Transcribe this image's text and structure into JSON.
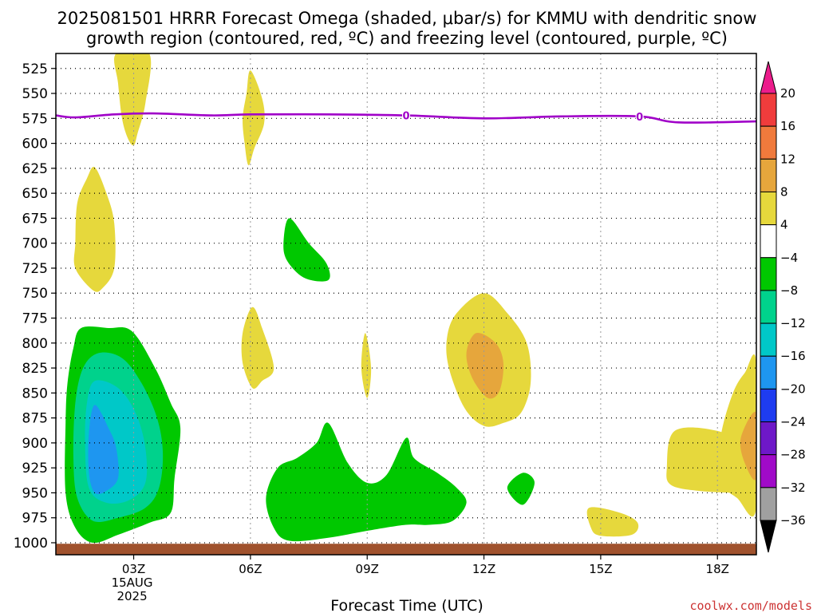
{
  "title": {
    "line1": "2025081501 HRRR Forecast Omega (shaded, μbar/s) for KMMU with dendritic snow",
    "line2": "growth region (contoured, red, ºC) and freezing level (contoured, purple, ºC)"
  },
  "credit": "coolwx.com/models",
  "chart_data": {
    "type": "heatmap",
    "title": "2025081501 HRRR Forecast Omega (shaded, μbar/s) for KMMU with dendritic snow growth region (contoured, red, ºC) and freezing level (contoured, purple, ºC)",
    "xlabel": "Forecast Time (UTC)",
    "ylabel": "",
    "x_range_hours_utc": [
      1,
      19
    ],
    "y_range_hpa": [
      510,
      1012
    ],
    "y_axis_inverted": true,
    "grid": true,
    "x_ticks": [
      {
        "hour": 3,
        "label": "03Z",
        "sub1": "15AUG",
        "sub2": "2025"
      },
      {
        "hour": 6,
        "label": "06Z"
      },
      {
        "hour": 9,
        "label": "09Z"
      },
      {
        "hour": 12,
        "label": "12Z"
      },
      {
        "hour": 15,
        "label": "15Z"
      },
      {
        "hour": 18,
        "label": "18Z"
      }
    ],
    "y_ticks": [
      525,
      550,
      575,
      600,
      625,
      650,
      675,
      700,
      725,
      750,
      775,
      800,
      825,
      850,
      875,
      900,
      925,
      950,
      975,
      1000
    ],
    "colorbar": {
      "levels": [
        "20",
        "16",
        "12",
        "8",
        "4",
        "−4",
        "−8",
        "−12",
        "−16",
        "−20",
        "−24",
        "−28",
        "−32",
        "−36"
      ],
      "bins": [
        {
          "color": "#ec1c8c",
          "shape": "triangle-top"
        },
        {
          "color": "#f03c3c"
        },
        {
          "color": "#f07a3c"
        },
        {
          "color": "#e6a63c"
        },
        {
          "color": "#e6d83c"
        },
        {
          "color": "#ffffff"
        },
        {
          "color": "#00c800"
        },
        {
          "color": "#00d28c"
        },
        {
          "color": "#00c8c8"
        },
        {
          "color": "#1e96f0"
        },
        {
          "color": "#1e3cf0"
        },
        {
          "color": "#6e18c8"
        },
        {
          "color": "#a00ac8"
        },
        {
          "color": "#a0a0a0"
        },
        {
          "color": "#000000",
          "shape": "triangle-bottom"
        }
      ]
    },
    "freezing_level": {
      "color": "#a000c8",
      "label": "0",
      "label_hours": [
        10,
        16
      ],
      "points": [
        [
          1,
          572
        ],
        [
          1.5,
          574
        ],
        [
          2.5,
          571
        ],
        [
          3.5,
          570
        ],
        [
          5,
          572
        ],
        [
          6,
          571
        ],
        [
          8,
          571
        ],
        [
          10,
          572
        ],
        [
          12,
          575
        ],
        [
          14,
          573
        ],
        [
          16,
          573
        ],
        [
          17,
          579
        ],
        [
          19,
          578
        ]
      ]
    },
    "surface_color": "#a0522d",
    "shaded_regions": [
      {
        "name": "yellow-upper-03z",
        "color": "#e6d83c",
        "points": [
          [
            2.55,
            510
          ],
          [
            3.4,
            510
          ],
          [
            3.3,
            560
          ],
          [
            3.1,
            590
          ],
          [
            3.0,
            602
          ],
          [
            2.85,
            595
          ],
          [
            2.7,
            575
          ],
          [
            2.6,
            540
          ]
        ]
      },
      {
        "name": "yellow-upper-06z",
        "color": "#e6d83c",
        "points": [
          [
            6.0,
            527
          ],
          [
            6.3,
            555
          ],
          [
            6.35,
            580
          ],
          [
            6.1,
            605
          ],
          [
            5.95,
            622
          ],
          [
            5.85,
            600
          ],
          [
            5.8,
            575
          ],
          [
            5.9,
            550
          ]
        ]
      },
      {
        "name": "yellow-midlevel-02z",
        "color": "#e6d83c",
        "points": [
          [
            2.0,
            624
          ],
          [
            2.3,
            650
          ],
          [
            2.5,
            680
          ],
          [
            2.5,
            725
          ],
          [
            2.2,
            745
          ],
          [
            1.95,
            747
          ],
          [
            1.5,
            725
          ],
          [
            1.5,
            700
          ],
          [
            1.55,
            660
          ],
          [
            1.8,
            635
          ]
        ]
      },
      {
        "name": "green-700mb",
        "color": "#00c800",
        "points": [
          [
            7.0,
            675
          ],
          [
            7.5,
            700
          ],
          [
            7.95,
            720
          ],
          [
            8.0,
            737
          ],
          [
            7.4,
            735
          ],
          [
            6.95,
            718
          ],
          [
            6.85,
            700
          ]
        ]
      },
      {
        "name": "yellow-800mb-06z",
        "color": "#e6d83c",
        "points": [
          [
            6.05,
            764
          ],
          [
            6.3,
            785
          ],
          [
            6.6,
            825
          ],
          [
            6.3,
            838
          ],
          [
            6.05,
            845
          ],
          [
            5.8,
            820
          ],
          [
            5.8,
            790
          ]
        ]
      },
      {
        "name": "yellow-825mb-09z",
        "color": "#e6d83c",
        "points": [
          [
            8.95,
            790
          ],
          [
            9.1,
            825
          ],
          [
            9.0,
            855
          ],
          [
            8.85,
            825
          ]
        ]
      },
      {
        "name": "yellow-12z-blob",
        "color": "#e6d83c",
        "points": [
          [
            12.0,
            750
          ],
          [
            12.6,
            770
          ],
          [
            13.1,
            800
          ],
          [
            13.2,
            840
          ],
          [
            12.95,
            870
          ],
          [
            12.5,
            880
          ],
          [
            12.0,
            883
          ],
          [
            11.5,
            865
          ],
          [
            11.1,
            825
          ],
          [
            11.05,
            795
          ],
          [
            11.3,
            770
          ]
        ]
      },
      {
        "name": "orange-12z-core",
        "color": "#e6a63c",
        "points": [
          [
            11.8,
            790
          ],
          [
            12.3,
            800
          ],
          [
            12.5,
            820
          ],
          [
            12.4,
            848
          ],
          [
            12.1,
            855
          ],
          [
            11.7,
            835
          ],
          [
            11.55,
            810
          ]
        ]
      },
      {
        "name": "green-03z-outer",
        "color": "#00c800",
        "points": [
          [
            1.65,
            785
          ],
          [
            2.35,
            785
          ],
          [
            2.95,
            788
          ],
          [
            3.55,
            825
          ],
          [
            3.95,
            860
          ],
          [
            4.2,
            885
          ],
          [
            4.05,
            935
          ],
          [
            3.95,
            970
          ],
          [
            3.4,
            980
          ],
          [
            2.6,
            992
          ],
          [
            1.95,
            1000
          ],
          [
            1.5,
            985
          ],
          [
            1.25,
            950
          ],
          [
            1.25,
            880
          ],
          [
            1.3,
            840
          ],
          [
            1.45,
            805
          ]
        ]
      },
      {
        "name": "teal-03z",
        "color": "#00d28c",
        "points": [
          [
            2.1,
            810
          ],
          [
            2.7,
            815
          ],
          [
            3.2,
            840
          ],
          [
            3.6,
            875
          ],
          [
            3.75,
            910
          ],
          [
            3.65,
            945
          ],
          [
            3.3,
            965
          ],
          [
            2.6,
            975
          ],
          [
            1.95,
            978
          ],
          [
            1.55,
            955
          ],
          [
            1.45,
            915
          ],
          [
            1.5,
            860
          ],
          [
            1.7,
            825
          ]
        ]
      },
      {
        "name": "cyan-03z",
        "color": "#00c8c8",
        "points": [
          [
            2.0,
            838
          ],
          [
            2.6,
            845
          ],
          [
            3.05,
            870
          ],
          [
            3.3,
            905
          ],
          [
            3.3,
            940
          ],
          [
            2.9,
            957
          ],
          [
            2.3,
            960
          ],
          [
            1.85,
            945
          ],
          [
            1.75,
            900
          ],
          [
            1.8,
            860
          ]
        ]
      },
      {
        "name": "blue-03z",
        "color": "#1e96f0",
        "points": [
          [
            2.0,
            862
          ],
          [
            2.35,
            885
          ],
          [
            2.55,
            905
          ],
          [
            2.6,
            935
          ],
          [
            2.3,
            948
          ],
          [
            2.0,
            950
          ],
          [
            1.85,
            930
          ],
          [
            1.85,
            890
          ]
        ]
      },
      {
        "name": "green-lower-band",
        "color": "#00c800",
        "points": [
          [
            8.0,
            880
          ],
          [
            8.5,
            920
          ],
          [
            9.0,
            940
          ],
          [
            9.5,
            932
          ],
          [
            10.0,
            895
          ],
          [
            10.2,
            915
          ],
          [
            10.8,
            930
          ],
          [
            11.3,
            945
          ],
          [
            11.55,
            960
          ],
          [
            11.2,
            978
          ],
          [
            10.6,
            982
          ],
          [
            10.0,
            982
          ],
          [
            9.0,
            988
          ],
          [
            8.0,
            995
          ],
          [
            7.0,
            998
          ],
          [
            6.6,
            985
          ],
          [
            6.4,
            955
          ],
          [
            6.7,
            925
          ],
          [
            7.2,
            915
          ],
          [
            7.7,
            900
          ]
        ]
      },
      {
        "name": "green-950-13z",
        "color": "#00c800",
        "points": [
          [
            13.0,
            930
          ],
          [
            13.3,
            940
          ],
          [
            13.0,
            962
          ],
          [
            12.6,
            945
          ]
        ]
      },
      {
        "name": "yellow-18z-left",
        "color": "#e6d83c",
        "points": [
          [
            16.9,
            888
          ],
          [
            18.0,
            888
          ],
          [
            18.8,
            905
          ],
          [
            19.0,
            925
          ],
          [
            19.0,
            950
          ],
          [
            18.5,
            950
          ],
          [
            17.5,
            948
          ],
          [
            16.8,
            942
          ],
          [
            16.7,
            925
          ]
        ]
      },
      {
        "name": "yellow-19z-edge",
        "color": "#e6d83c",
        "points": [
          [
            19.0,
            820
          ],
          [
            19.0,
            965
          ],
          [
            18.5,
            955
          ],
          [
            18.0,
            935
          ],
          [
            18.1,
            890
          ],
          [
            18.4,
            850
          ],
          [
            18.7,
            830
          ]
        ]
      },
      {
        "name": "orange-19z-edge",
        "color": "#e6a63c",
        "points": [
          [
            19.0,
            870
          ],
          [
            19.0,
            935
          ],
          [
            18.7,
            920
          ],
          [
            18.6,
            895
          ]
        ]
      },
      {
        "name": "yellow-975-16z",
        "color": "#e6d83c",
        "points": [
          [
            14.7,
            965
          ],
          [
            15.5,
            970
          ],
          [
            15.95,
            980
          ],
          [
            15.8,
            992
          ],
          [
            15.0,
            993
          ],
          [
            14.75,
            985
          ]
        ]
      }
    ]
  }
}
